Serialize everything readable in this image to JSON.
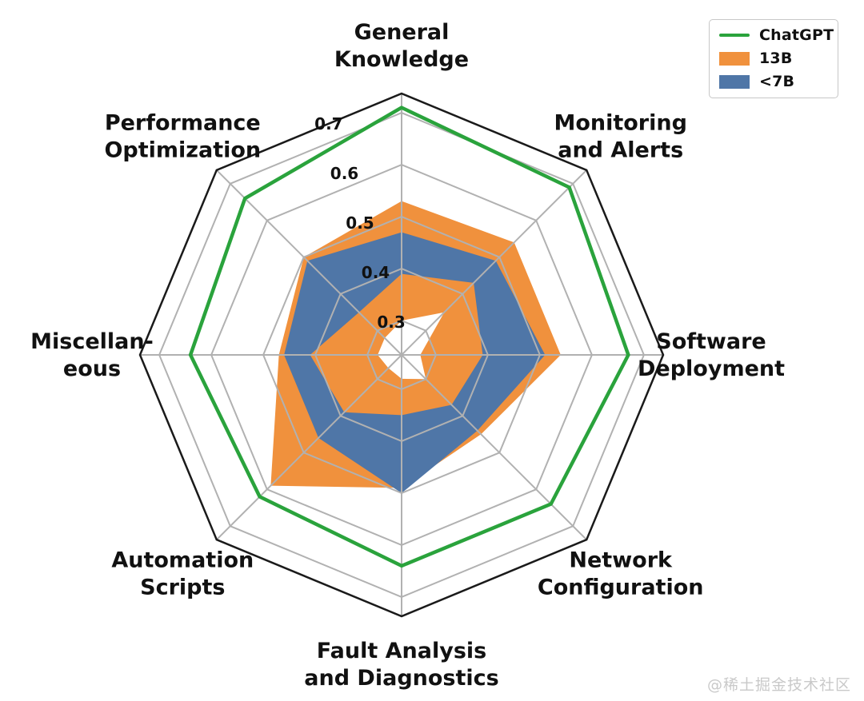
{
  "watermark": "@稀土掘金技术社区",
  "legend": {
    "items": [
      {
        "label": "ChatGPT",
        "type": "line",
        "color": "#2aa33c"
      },
      {
        "label": "13B",
        "type": "patch",
        "color": "#f0913d"
      },
      {
        "label": "<7B",
        "type": "patch",
        "color": "#4f76a7"
      }
    ]
  },
  "chart_data": {
    "type": "radar",
    "title": "",
    "categories": [
      "General Knowledge",
      "Monitoring and Alerts",
      "Software Deployment",
      "Network Configuration",
      "Fault Analysis and Diagnostics",
      "Automation Scripts",
      "Miscellaneous",
      "Performance Optimization"
    ],
    "category_display": [
      [
        "General",
        "Knowledge"
      ],
      [
        "Monitoring",
        "and Alerts"
      ],
      [
        "Software",
        "Deployment"
      ],
      [
        "Network",
        "Configuration"
      ],
      [
        "Fault Analysis",
        "and Diagnostics"
      ],
      [
        "Automation",
        "Scripts"
      ],
      [
        "Miscellan-",
        "eous"
      ],
      [
        "Performance",
        "Optimization"
      ]
    ],
    "radial_ticks": [
      0.3,
      0.4,
      0.5,
      0.6,
      0.7
    ],
    "radial_range": [
      0.234,
      0.737
    ],
    "grid": true,
    "legend_position": "top-right",
    "axes_count": 8,
    "start_angle_deg": 90,
    "direction": "clockwise",
    "series": [
      {
        "name": "ChatGPT",
        "type": "line",
        "color": "#2aa33c",
        "values": [
          0.71,
          0.69,
          0.67,
          0.64,
          0.64,
          0.62,
          0.64,
          0.66
        ]
      },
      {
        "name": "13B",
        "type": "band",
        "color": "#f0913d",
        "min": [
          0.3,
          0.35,
          0.27,
          0.3,
          0.28,
          0.27,
          0.28,
          0.28
        ],
        "max": [
          0.53,
          0.54,
          0.54,
          0.45,
          0.49,
          0.59,
          0.47,
          0.5
        ]
      },
      {
        "name": "<7B",
        "type": "band",
        "color": "#4f76a7",
        "min": [
          0.39,
          0.43,
          0.39,
          0.37,
          0.35,
          0.39,
          0.41,
          0.35
        ],
        "max": [
          0.47,
          0.49,
          0.51,
          0.44,
          0.5,
          0.46,
          0.46,
          0.49
        ]
      }
    ],
    "style": {
      "grid_color": "#b1b1b1",
      "outline_color": "#1a1a1a",
      "label_color": "#111111",
      "background": "#ffffff"
    }
  }
}
